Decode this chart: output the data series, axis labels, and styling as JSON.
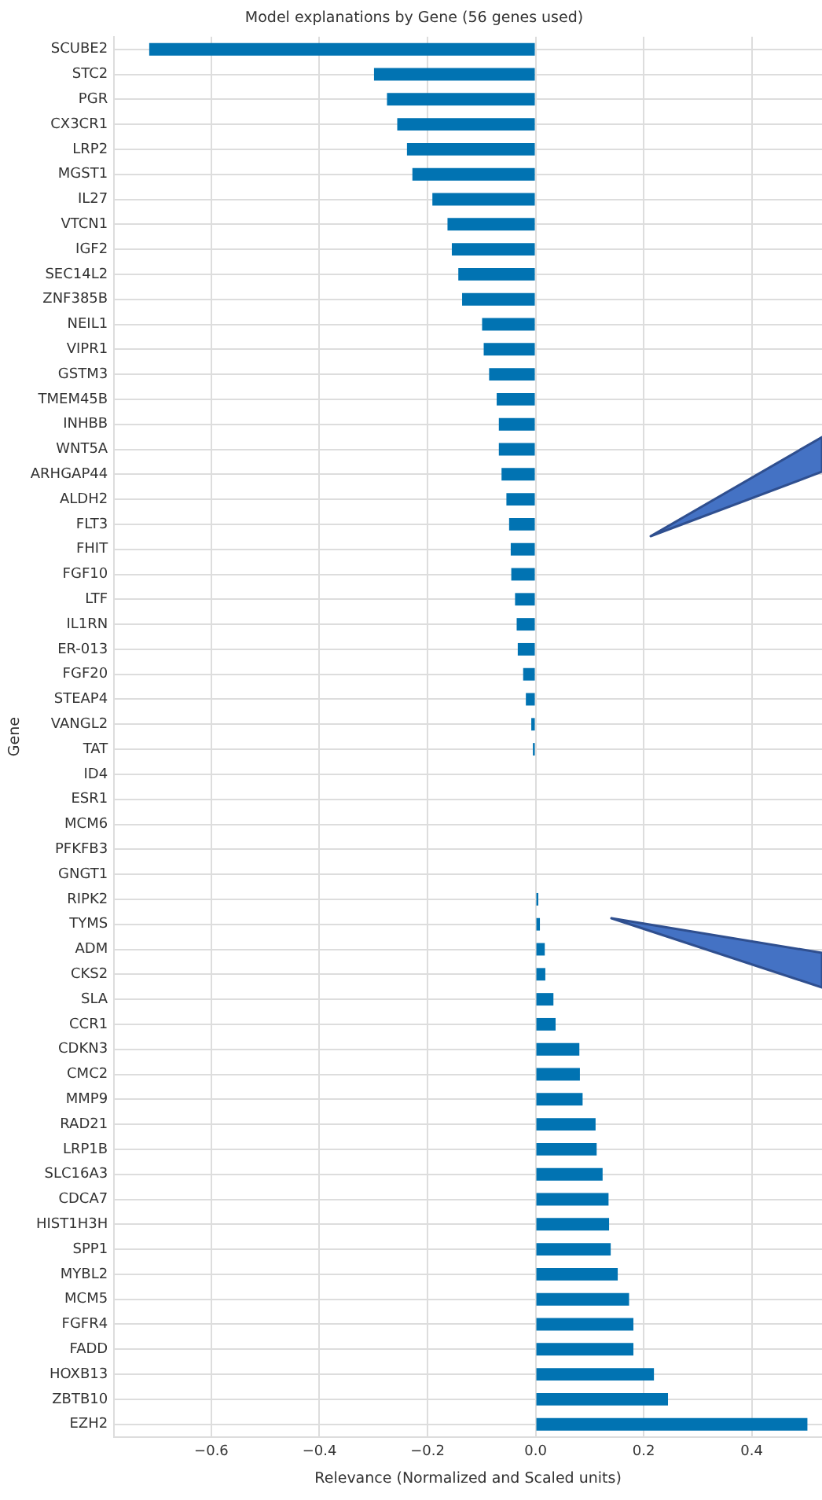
{
  "chart_data": {
    "type": "bar",
    "orientation": "horizontal",
    "title": "Model explanations by Gene (56 genes used)",
    "xlabel": "Relevance (Normalized and Scaled units)",
    "ylabel": "Gene",
    "categories": [
      "SCUBE2",
      "STC2",
      "PGR",
      "CX3CR1",
      "LRP2",
      "MGST1",
      "IL27",
      "VTCN1",
      "IGF2",
      "SEC14L2",
      "ZNF385B",
      "NEIL1",
      "VIPR1",
      "GSTM3",
      "TMEM45B",
      "INHBB",
      "WNT5A",
      "ARHGAP44",
      "ALDH2",
      "FLT3",
      "FHIT",
      "FGF10",
      "LTF",
      "IL1RN",
      "ER-013",
      "FGF20",
      "STEAP4",
      "VANGL2",
      "TAT",
      "ID4",
      "ESR1",
      "MCM6",
      "PFKFB3",
      "GNGT1",
      "RIPK2",
      "TYMS",
      "ADM",
      "CKS2",
      "SLA",
      "CCR1",
      "CDKN3",
      "CMC2",
      "MMP9",
      "RAD21",
      "LRP1B",
      "SLC16A3",
      "CDCA7",
      "HIST1H3H",
      "SPP1",
      "MYBL2",
      "MCM5",
      "FGFR4",
      "FADD",
      "HOXB13",
      "ZBTB10",
      "EZH2"
    ],
    "values": [
      -0.715,
      -0.299,
      -0.275,
      -0.256,
      -0.238,
      -0.228,
      -0.191,
      -0.163,
      -0.155,
      -0.143,
      -0.136,
      -0.099,
      -0.096,
      -0.086,
      -0.072,
      -0.068,
      -0.068,
      -0.063,
      -0.054,
      -0.049,
      -0.046,
      -0.045,
      -0.038,
      -0.035,
      -0.033,
      -0.023,
      -0.018,
      -0.008,
      -0.005,
      0,
      0,
      0,
      0,
      0,
      0.005,
      0.008,
      0.017,
      0.018,
      0.033,
      0.037,
      0.081,
      0.082,
      0.087,
      0.111,
      0.113,
      0.124,
      0.135,
      0.136,
      0.139,
      0.152,
      0.173,
      0.181,
      0.181,
      0.219,
      0.245,
      0.503
    ],
    "color": "#0173b2",
    "xlim": [
      -0.78,
      0.53
    ],
    "xticks": [
      {
        "value": -0.6,
        "label": "−0.6"
      },
      {
        "value": -0.4,
        "label": "−0.4"
      },
      {
        "value": -0.2,
        "label": "−0.2"
      },
      {
        "value": 0,
        "label": "0.0"
      },
      {
        "value": 0.2,
        "label": "0.2"
      },
      {
        "value": 0.4,
        "label": "0.4"
      }
    ],
    "grid": true,
    "legend": false
  }
}
